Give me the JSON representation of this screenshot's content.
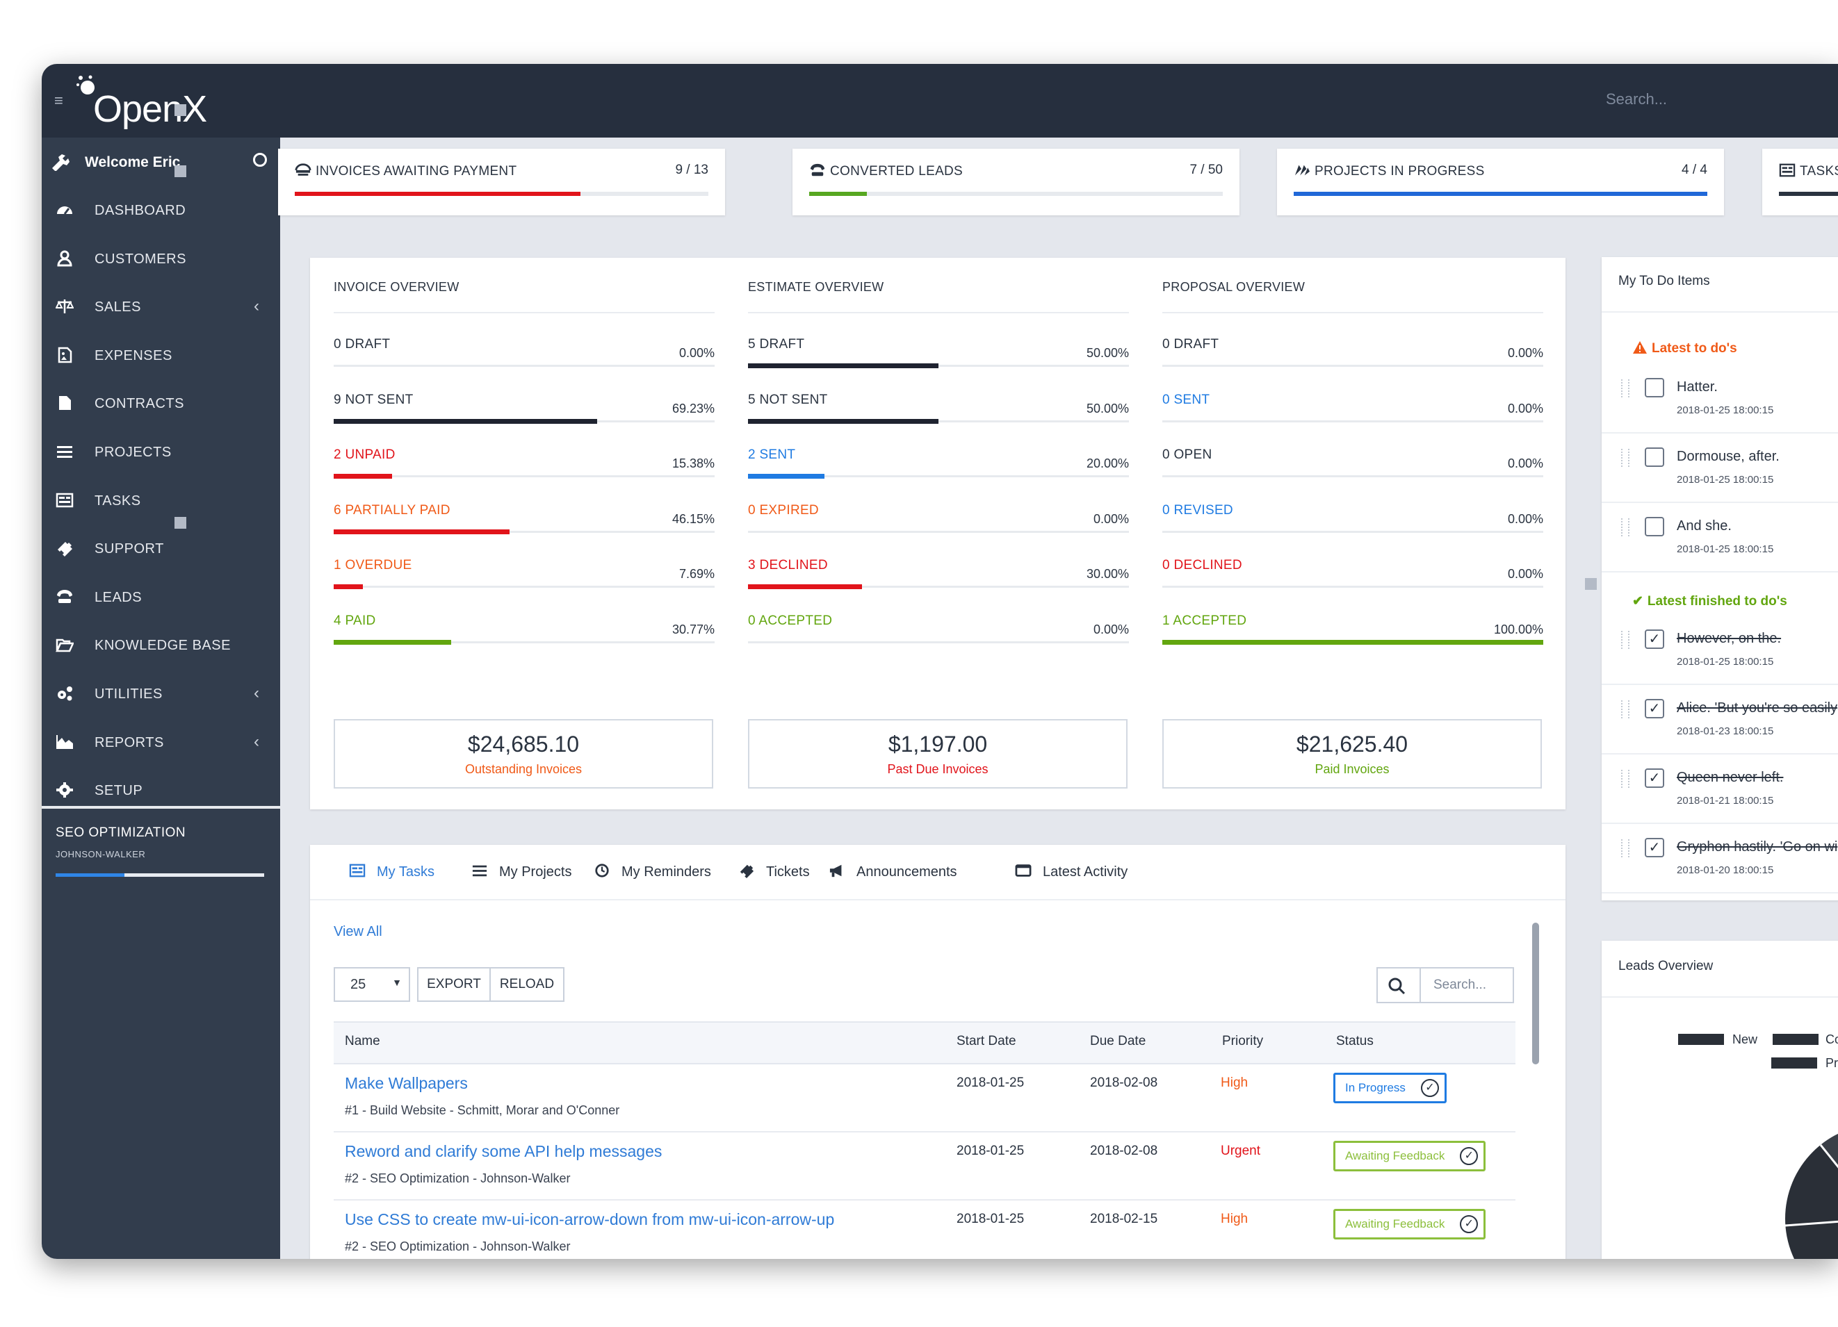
{
  "app": {
    "logo": "OpenX",
    "search_placeholder": "Search..."
  },
  "sidebar": {
    "welcome": "Welcome Eric",
    "items": [
      {
        "label": "DASHBOARD",
        "icon": "dashboard-icon",
        "has_arrow": false
      },
      {
        "label": "CUSTOMERS",
        "icon": "user-icon",
        "has_arrow": false
      },
      {
        "label": "SALES",
        "icon": "scale-icon",
        "has_arrow": true
      },
      {
        "label": "EXPENSES",
        "icon": "file-image-icon",
        "has_arrow": false
      },
      {
        "label": "CONTRACTS",
        "icon": "document-icon",
        "has_arrow": false
      },
      {
        "label": "PROJECTS",
        "icon": "bars-icon",
        "has_arrow": false
      },
      {
        "label": "TASKS",
        "icon": "tasks-icon",
        "has_arrow": false
      },
      {
        "label": "SUPPORT",
        "icon": "ticket-icon",
        "has_arrow": false
      },
      {
        "label": "LEADS",
        "icon": "tty-icon",
        "has_arrow": false
      },
      {
        "label": "KNOWLEDGE BASE",
        "icon": "folder-open-icon",
        "has_arrow": false
      },
      {
        "label": "UTILITIES",
        "icon": "cogs-icon",
        "has_arrow": true
      },
      {
        "label": "REPORTS",
        "icon": "area-chart-icon",
        "has_arrow": true
      },
      {
        "label": "SETUP",
        "icon": "gear-icon",
        "has_arrow": false
      }
    ],
    "arrow": "‹",
    "project": {
      "title": "SEO OPTIMIZATION",
      "subtitle": "JOHNSON-WALKER",
      "progress": 0.33
    }
  },
  "stats": [
    {
      "title": "INVOICES AWAITING PAYMENT",
      "count": "9 / 13",
      "progress": 0.69,
      "color": "#e1141b",
      "icon": "balance-icon"
    },
    {
      "title": "CONVERTED LEADS",
      "count": "7 / 50",
      "progress": 0.14,
      "color": "#57a721",
      "icon": "tty-icon"
    },
    {
      "title": "PROJECTS IN PROGRESS",
      "count": "4 / 4",
      "progress": 1.0,
      "color": "#2068d8",
      "icon": "cubes-icon"
    },
    {
      "title": "TASKS",
      "count": "",
      "progress": 1.0,
      "color": "#2a3340",
      "icon": "tasks-icon"
    }
  ],
  "overview": [
    {
      "title": "INVOICE OVERVIEW",
      "rows": [
        {
          "label": "0 DRAFT",
          "pct": "0.00%",
          "value": 0.0,
          "color": "#2a3340",
          "bar": "#2a2f37"
        },
        {
          "label": "9 NOT SENT",
          "pct": "69.23%",
          "value": 69.23,
          "color": "#2a3340",
          "bar": "#1f2330"
        },
        {
          "label": "2 UNPAID",
          "pct": "15.38%",
          "value": 15.38,
          "color": "#e1141b",
          "bar": "#e1141b"
        },
        {
          "label": "6 PARTIALLY PAID",
          "pct": "46.15%",
          "value": 46.15,
          "color": "#f05a18",
          "bar": "#e1141b"
        },
        {
          "label": "1 OVERDUE",
          "pct": "7.69%",
          "value": 7.69,
          "color": "#f05a18",
          "bar": "#e1141b"
        },
        {
          "label": "4 PAID",
          "pct": "30.77%",
          "value": 30.77,
          "color": "#62a60f",
          "bar": "#62a60f"
        }
      ],
      "total": {
        "amount": "$24,685.10",
        "label": "Outstanding Invoices",
        "color": "#f05a18"
      }
    },
    {
      "title": "ESTIMATE OVERVIEW",
      "rows": [
        {
          "label": "5 DRAFT",
          "pct": "50.00%",
          "value": 50.0,
          "color": "#2a3340",
          "bar": "#1f2330"
        },
        {
          "label": "5 NOT SENT",
          "pct": "50.00%",
          "value": 50.0,
          "color": "#2a3340",
          "bar": "#1f2330"
        },
        {
          "label": "2 SENT",
          "pct": "20.00%",
          "value": 20.0,
          "color": "#1f7be2",
          "bar": "#1f7be2"
        },
        {
          "label": "0 EXPIRED",
          "pct": "0.00%",
          "value": 0.0,
          "color": "#f05a18",
          "bar": "#e1141b"
        },
        {
          "label": "3 DECLINED",
          "pct": "30.00%",
          "value": 30.0,
          "color": "#e1141b",
          "bar": "#e1141b"
        },
        {
          "label": "0 ACCEPTED",
          "pct": "0.00%",
          "value": 0.0,
          "color": "#62a60f",
          "bar": "#62a60f"
        }
      ],
      "total": {
        "amount": "$1,197.00",
        "label": "Past Due Invoices",
        "color": "#e1141b"
      }
    },
    {
      "title": "PROPOSAL OVERVIEW",
      "rows": [
        {
          "label": "0 DRAFT",
          "pct": "0.00%",
          "value": 0.0,
          "color": "#2a3340",
          "bar": "#1f2330"
        },
        {
          "label": "0 SENT",
          "pct": "0.00%",
          "value": 0.0,
          "color": "#1f7be2",
          "bar": "#1f7be2"
        },
        {
          "label": "0 OPEN",
          "pct": "0.00%",
          "value": 0.0,
          "color": "#2a3340",
          "bar": "#1f2330"
        },
        {
          "label": "0 REVISED",
          "pct": "0.00%",
          "value": 0.0,
          "color": "#1f7be2",
          "bar": "#1f7be2"
        },
        {
          "label": "0 DECLINED",
          "pct": "0.00%",
          "value": 0.0,
          "color": "#e1141b",
          "bar": "#e1141b"
        },
        {
          "label": "1 ACCEPTED",
          "pct": "100.00%",
          "value": 100.0,
          "color": "#62a60f",
          "bar": "#62a60f"
        }
      ],
      "total": {
        "amount": "$21,625.40",
        "label": "Paid Invoices",
        "color": "#62a60f"
      }
    }
  ],
  "tabs": [
    {
      "label": "My Tasks",
      "icon": "tasks-icon",
      "active": true
    },
    {
      "label": "My Projects",
      "icon": "bars-icon",
      "active": false
    },
    {
      "label": "My Reminders",
      "icon": "clock-icon",
      "active": false
    },
    {
      "label": "Tickets",
      "icon": "ticket-icon",
      "active": false
    },
    {
      "label": "Announcements",
      "icon": "bullhorn-icon",
      "active": false
    },
    {
      "label": "Latest Activity",
      "icon": "window-icon",
      "active": false
    }
  ],
  "table": {
    "view_all": "View All",
    "page_size": "25",
    "export": "EXPORT",
    "reload": "RELOAD",
    "search_placeholder": "Search...",
    "columns": [
      "Name",
      "Start Date",
      "Due Date",
      "Priority",
      "Status"
    ],
    "rows": [
      {
        "name": "Make Wallpapers",
        "meta": "#1 - Build Website - Schmitt, Morar and O'Conner",
        "start": "2018-01-25",
        "due": "2018-02-08",
        "priority": "High",
        "priority_color": "#f05a18",
        "status": "In Progress",
        "status_color": "#1f7be2"
      },
      {
        "name": "Reword and clarify some API help messages",
        "meta": "#2 - SEO Optimization - Johnson-Walker",
        "start": "2018-01-25",
        "due": "2018-02-08",
        "priority": "Urgent",
        "priority_color": "#e1141b",
        "status": "Awaiting Feedback",
        "status_color": "#8cbf3c"
      },
      {
        "name": "Use CSS to create mw-ui-icon-arrow-down from mw-ui-icon-arrow-up",
        "meta": "#2 - SEO Optimization - Johnson-Walker",
        "start": "2018-01-25",
        "due": "2018-02-15",
        "priority": "High",
        "priority_color": "#f05a18",
        "status": "Awaiting Feedback",
        "status_color": "#8cbf3c"
      }
    ]
  },
  "todo": {
    "title": "My To Do Items",
    "latest_label": "Latest to do's",
    "finished_label": "Latest finished to do's",
    "latest": [
      {
        "text": "Hatter.",
        "date": "2018-01-25 18:00:15"
      },
      {
        "text": "Dormouse, after.",
        "date": "2018-01-25 18:00:15"
      },
      {
        "text": "And she.",
        "date": "2018-01-25 18:00:15"
      }
    ],
    "finished": [
      {
        "text": "However, on the.",
        "date": "2018-01-25 18:00:15"
      },
      {
        "text": "Alice. 'But you're so easily",
        "date": "2018-01-23 18:00:15"
      },
      {
        "text": "Queen never left.",
        "date": "2018-01-21 18:00:15"
      },
      {
        "text": "Gryphon hastily. 'Go on wi",
        "date": "2018-01-20 18:00:15"
      }
    ]
  },
  "leads": {
    "title": "Leads Overview",
    "legend": [
      "New",
      "Co",
      "Pr"
    ]
  },
  "chart_data": {
    "type": "pie",
    "title": "Leads Overview",
    "labels": [
      "New",
      "Co",
      "Pr"
    ],
    "colors": [
      "#2a2f37",
      "#62a60f",
      "#2a2f37"
    ]
  }
}
